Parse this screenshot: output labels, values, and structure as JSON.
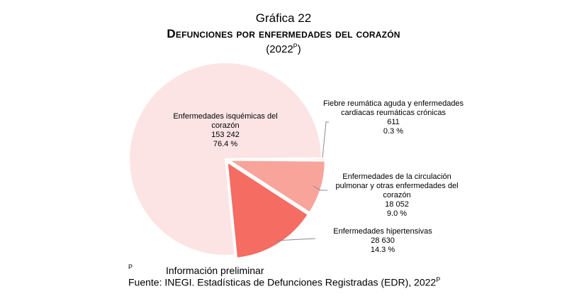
{
  "chart_data": {
    "type": "pie",
    "title": "Gráfica 22",
    "subtitle": "Defunciones por enfermedades del corazón",
    "year": "(2022",
    "year_sup": "P",
    "slices": [
      {
        "label": "Fiebre reumática aguda y enfermedades cardiacas reumáticas crónicas",
        "value": 611,
        "value_text": "611",
        "percent": 0.3,
        "percent_text": "0.3 %",
        "color": "#e8b0a8"
      },
      {
        "label": "Enfermedades de la circulación pulmonar y otras enfermedades del corazón",
        "value": 18052,
        "value_text": "18 052",
        "percent": 9.0,
        "percent_text": "9.0 %",
        "color": "#f8a49b"
      },
      {
        "label": "Enfermedades hipertensivas",
        "value": 28630,
        "value_text": "28 630",
        "percent": 14.3,
        "percent_text": "14.3 %",
        "color": "#f56c63"
      },
      {
        "label": "Enfermedades isquémicas del corazón",
        "value": 153242,
        "value_text": "153 242",
        "percent": 76.4,
        "percent_text": "76.4 %",
        "color": "#fde4e4"
      }
    ],
    "start": "3 o'clock, clockwise"
  },
  "notes": {
    "p_mark": "P",
    "preliminary": "Información preliminar",
    "source": "Fuente: INEGI. Estadísticas de Defunciones Registradas (EDR), 2022",
    "source_sup": "P"
  }
}
